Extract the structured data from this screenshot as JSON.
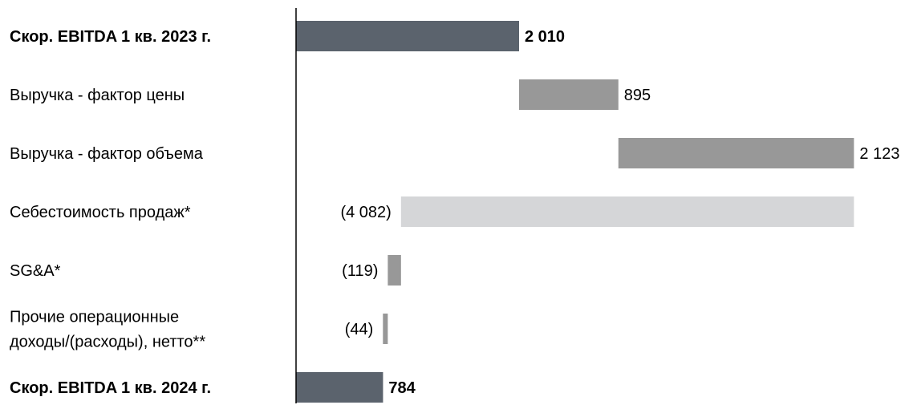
{
  "chart_data": {
    "type": "bar",
    "subtype": "waterfall-horizontal",
    "title": "",
    "xlabel": "",
    "ylabel": "",
    "grid": false,
    "legend": "none",
    "steps": [
      {
        "label_lines": [
          "Скор. EBITDA 1 кв. 2023 г."
        ],
        "kind": "total",
        "value": 2010,
        "value_label": "2 010",
        "bold": true
      },
      {
        "label_lines": [
          "Выручка - фактор цены"
        ],
        "kind": "change",
        "value": 895,
        "value_label": "895",
        "bold": false
      },
      {
        "label_lines": [
          "Выручка - фактор объема"
        ],
        "kind": "change",
        "value": 2123,
        "value_label": "2 123",
        "bold": false
      },
      {
        "label_lines": [
          "Себестоимость продаж*"
        ],
        "kind": "change",
        "value": -4082,
        "value_label": "(4 082)",
        "bold": false
      },
      {
        "label_lines": [
          "SG&A*"
        ],
        "kind": "change",
        "value": -119,
        "value_label": "(119)",
        "bold": false
      },
      {
        "label_lines": [
          "Прочие операционные",
          "доходы/(расходы), нетто**"
        ],
        "kind": "change",
        "value": -44,
        "value_label": "(44)",
        "bold": false
      },
      {
        "label_lines": [
          "Скор. EBITDA 1 кв. 2024 г."
        ],
        "kind": "total",
        "value": 784,
        "value_label": "784",
        "bold": true
      }
    ],
    "colors": {
      "total": "#5b636d",
      "increase": "#989898",
      "cost_of_sales": "#d5d6d8",
      "small_decrease": "#989898",
      "axis": "#000000",
      "text": "#000000"
    }
  }
}
